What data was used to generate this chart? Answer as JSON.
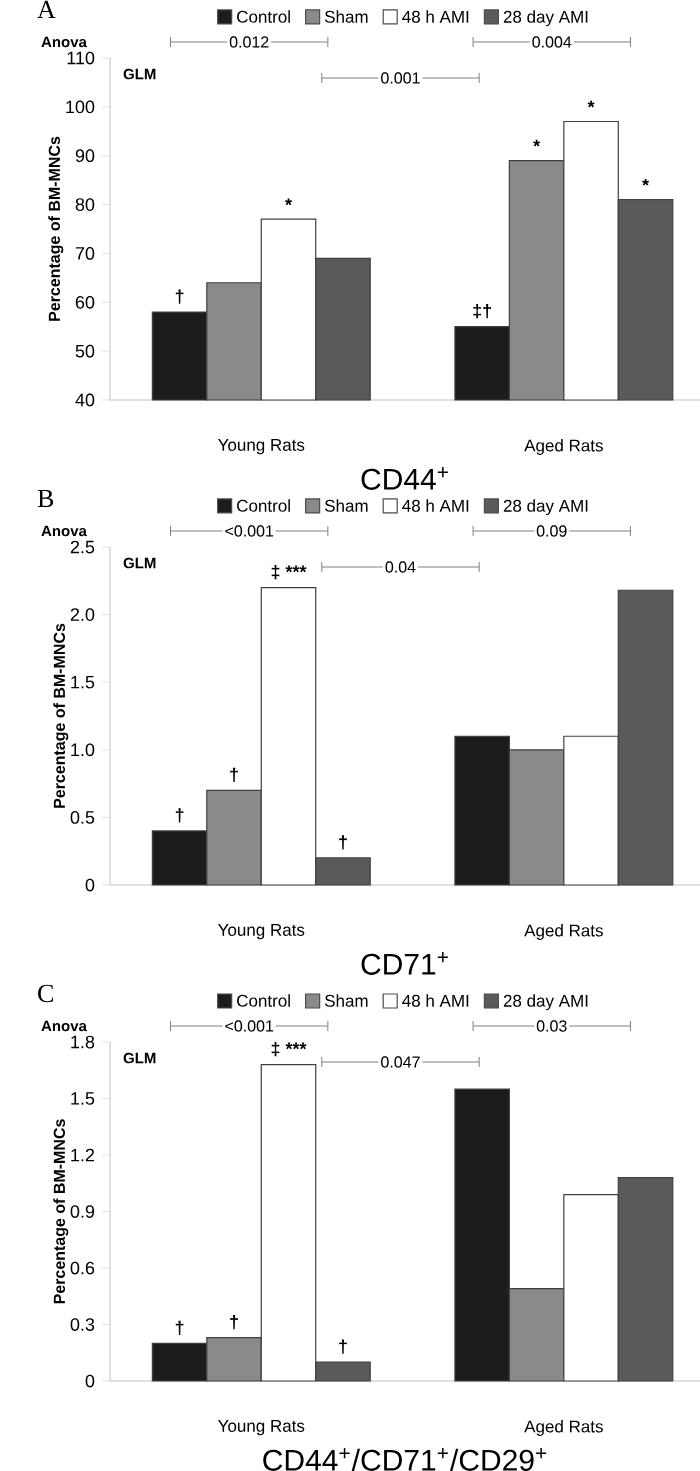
{
  "chart_data": [
    {
      "type": "bar",
      "title": "CD44$^{+}$",
      "ylabel": "Percentage of BM-MNCs",
      "categories": [
        "Young Rats",
        "Aged Rats"
      ],
      "series": [
        {
          "name": "Control",
          "color": "#1c1c1c",
          "values": [
            58,
            55
          ],
          "value_labels": [
            "†",
            "‡†"
          ]
        },
        {
          "name": "Sham",
          "color": "#8a8a8a",
          "values": [
            64,
            89
          ],
          "value_labels": [
            null,
            "*"
          ]
        },
        {
          "name": "48 h AMI",
          "color": "#ffffff",
          "values": [
            77,
            97
          ],
          "value_labels": [
            "*",
            "*"
          ]
        },
        {
          "name": "28 day AMI",
          "color": "#5a5a5a",
          "values": [
            69,
            81
          ],
          "value_labels": [
            null,
            "*"
          ]
        }
      ],
      "ylim": [
        40,
        110
      ],
      "yticks": [
        40,
        50,
        60,
        70,
        80,
        90,
        100,
        110
      ],
      "legend": "top",
      "annotations": [
        "A",
        "Anova",
        "0.012",
        "0.004",
        "GLM",
        "0.001"
      ]
    },
    {
      "type": "bar",
      "title": "CD71$^{+}$",
      "ylabel": "Percentage of BM-MNCs",
      "categories": [
        "Young Rats",
        "Aged Rats"
      ],
      "series": [
        {
          "name": "Control",
          "color": "#1c1c1c",
          "values": [
            0.4,
            1.1
          ],
          "value_labels": [
            "†",
            null
          ]
        },
        {
          "name": "Sham",
          "color": "#8a8a8a",
          "values": [
            0.7,
            1.0
          ],
          "value_labels": [
            "†",
            null
          ]
        },
        {
          "name": "48 h AMI",
          "color": "#ffffff",
          "values": [
            2.2,
            1.1
          ],
          "value_labels": [
            "‡ ***",
            null
          ]
        },
        {
          "name": "28 day AMI",
          "color": "#5a5a5a",
          "values": [
            0.2,
            2.18
          ],
          "value_labels": [
            "†",
            null
          ]
        }
      ],
      "ylim": [
        0,
        2.5
      ],
      "yticks": [
        0,
        0.5,
        {
          "value": 1,
          "label": "1.0"
        },
        1.5,
        {
          "value": 2,
          "label": "2.0"
        },
        2.5
      ],
      "legend": "top",
      "annotations": [
        "B",
        "Anova",
        "<0.001",
        "0.09",
        "GLM",
        "0.04"
      ]
    },
    {
      "type": "bar",
      "title": "CD44$^{+}$/CD71$^{+}$/CD29$^{+}$",
      "ylabel": "Percentage of BM-MNCs",
      "categories": [
        "Young Rats",
        "Aged Rats"
      ],
      "series": [
        {
          "name": "Control",
          "color": "#1c1c1c",
          "values": [
            0.2,
            1.55
          ],
          "value_labels": [
            "†",
            null
          ]
        },
        {
          "name": "Sham",
          "color": "#8a8a8a",
          "values": [
            0.23,
            0.49
          ],
          "value_labels": [
            "†",
            null
          ]
        },
        {
          "name": "48 h AMI",
          "color": "#ffffff",
          "values": [
            1.68,
            0.99
          ],
          "value_labels": [
            "‡ ***",
            null
          ]
        },
        {
          "name": "28 day AMI",
          "color": "#5a5a5a",
          "values": [
            0.1,
            1.08
          ],
          "value_labels": [
            "†",
            null
          ]
        }
      ],
      "ylim": [
        0,
        1.8
      ],
      "yticks": [
        0,
        0.3,
        0.6,
        0.9,
        1.2,
        1.5,
        1.8
      ],
      "legend": "top",
      "annotations": [
        "C",
        "Anova",
        "<0.001",
        "0.03",
        "GLM",
        "0.047"
      ]
    }
  ]
}
